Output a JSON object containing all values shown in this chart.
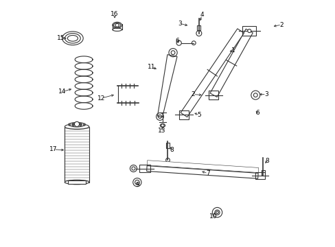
{
  "bg_color": "#ffffff",
  "line_color": "#333333",
  "label_color": "#000000",
  "figsize": [
    4.89,
    3.6
  ],
  "dpi": 100
}
